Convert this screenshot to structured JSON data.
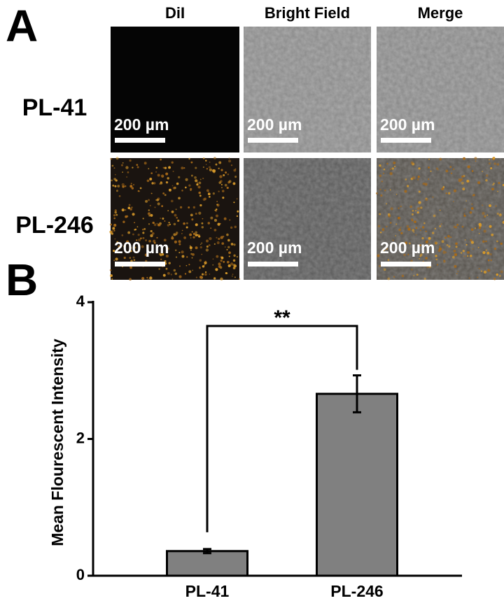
{
  "panel_a": {
    "label": "A",
    "columns": [
      "DiI",
      "Bright Field",
      "Merge"
    ],
    "rows": [
      {
        "label": "PL-41",
        "scale_bars": [
          "200 µm",
          "200 µm",
          "200 µm"
        ]
      },
      {
        "label": "PL-246",
        "scale_bars": [
          "200 µm",
          "200 µm",
          "200 µm"
        ]
      }
    ]
  },
  "panel_b": {
    "label": "B"
  },
  "chart_data": {
    "type": "bar",
    "y_label": "Mean Flourescent Intensity",
    "categories": [
      "PL-41",
      "PL-246"
    ],
    "values": [
      0.36,
      2.66
    ],
    "errors": [
      0.03,
      0.27
    ],
    "color": "#808080",
    "ylim": [
      0,
      4
    ],
    "yticks": [
      0,
      2,
      4
    ],
    "significance": "**"
  }
}
